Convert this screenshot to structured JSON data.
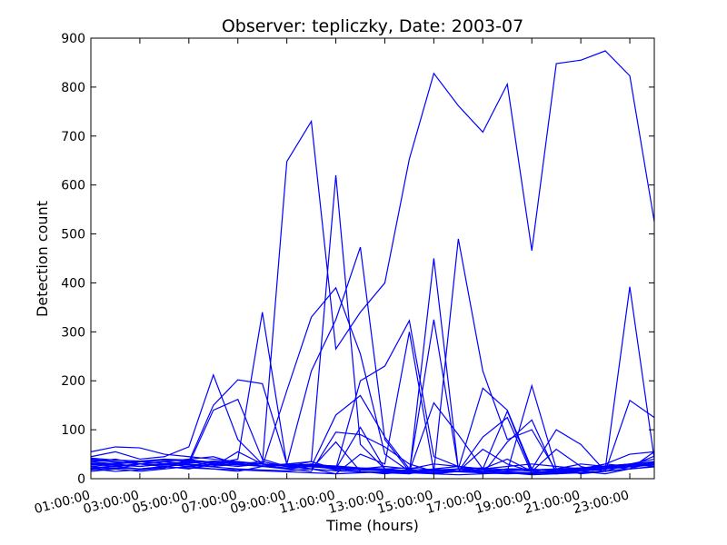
{
  "chart_data": {
    "type": "line",
    "title": "Observer: tepliczky, Date: 2003-07",
    "xlabel": "Time (hours)",
    "ylabel": "Detection count",
    "xlim": [
      1,
      24
    ],
    "ylim": [
      0,
      900
    ],
    "yticks": [
      0,
      100,
      200,
      300,
      400,
      500,
      600,
      700,
      800,
      900
    ],
    "xticks": [
      1,
      3,
      5,
      7,
      9,
      11,
      13,
      15,
      17,
      19,
      21,
      23
    ],
    "xtick_labels": [
      "01:00:00",
      "03:00:00",
      "05:00:00",
      "07:00:00",
      "09:00:00",
      "11:00:00",
      "13:00:00",
      "15:00:00",
      "17:00:00",
      "19:00:00",
      "21:00:00",
      "23:00:00"
    ],
    "x": [
      1,
      2,
      3,
      4,
      5,
      6,
      7,
      8,
      9,
      10,
      11,
      12,
      13,
      14,
      15,
      16,
      17,
      18,
      19,
      20,
      21,
      22,
      23,
      24
    ],
    "line_color": "#0000ff",
    "grid": false,
    "series": [
      {
        "values": [
          55,
          65,
          63,
          50,
          45,
          40,
          35,
          30,
          648,
          730,
          265,
          340,
          400,
          653,
          828,
          762,
          708,
          806,
          466,
          848,
          855,
          874,
          823,
          525
        ]
      },
      {
        "values": [
          45,
          55,
          40,
          45,
          65,
          212,
          80,
          30,
          25,
          30,
          20,
          15,
          12,
          10,
          20,
          25,
          15,
          20,
          15,
          10,
          15,
          20,
          392,
          40
        ]
      },
      {
        "values": [
          30,
          28,
          25,
          30,
          35,
          150,
          202,
          194,
          30,
          25,
          20,
          200,
          230,
          323,
          45,
          25,
          20,
          15,
          190,
          20,
          10,
          15,
          20,
          55
        ]
      },
      {
        "values": [
          25,
          20,
          30,
          25,
          30,
          140,
          162,
          40,
          25,
          35,
          620,
          70,
          20,
          10,
          450,
          20,
          15,
          20,
          20,
          15,
          15,
          20,
          30,
          35
        ]
      },
      {
        "values": [
          20,
          15,
          18,
          22,
          40,
          30,
          40,
          340,
          28,
          20,
          10,
          50,
          30,
          300,
          15,
          490,
          220,
          80,
          100,
          15,
          20,
          25,
          30,
          40
        ]
      },
      {
        "values": [
          35,
          30,
          25,
          30,
          25,
          35,
          30,
          25,
          30,
          220,
          325,
          473,
          80,
          15,
          325,
          20,
          185,
          140,
          20,
          100,
          70,
          15,
          160,
          125
        ]
      },
      {
        "values": [
          40,
          35,
          30,
          35,
          30,
          25,
          30,
          25,
          180,
          330,
          390,
          255,
          50,
          15,
          155,
          90,
          20,
          138,
          15,
          20,
          15,
          10,
          20,
          25
        ]
      },
      {
        "values": [
          20,
          25,
          30,
          25,
          20,
          30,
          25,
          30,
          20,
          25,
          130,
          170,
          85,
          20,
          10,
          15,
          85,
          125,
          10,
          15,
          20,
          30,
          25,
          30
        ]
      },
      {
        "values": [
          25,
          30,
          35,
          30,
          25,
          30,
          35,
          25,
          20,
          15,
          95,
          90,
          65,
          30,
          15,
          20,
          10,
          75,
          120,
          10,
          15,
          20,
          25,
          30
        ]
      },
      {
        "values": [
          30,
          25,
          20,
          25,
          30,
          25,
          55,
          30,
          25,
          20,
          75,
          15,
          10,
          15,
          20,
          15,
          60,
          30,
          15,
          60,
          25,
          15,
          30,
          25
        ]
      },
      {
        "values": [
          15,
          20,
          15,
          20,
          25,
          20,
          15,
          25,
          30,
          35,
          20,
          105,
          20,
          15,
          10,
          15,
          20,
          40,
          15,
          20,
          30,
          25,
          20,
          35
        ]
      },
      {
        "values": [
          35,
          40,
          30,
          35,
          40,
          45,
          30,
          35,
          25,
          30,
          25,
          20,
          25,
          20,
          30,
          25,
          20,
          25,
          30,
          25,
          20,
          30,
          50,
          55
        ]
      },
      {
        "values": [
          28,
          32,
          36,
          30,
          34,
          28,
          30,
          26,
          22,
          28,
          18,
          20,
          16,
          18,
          14,
          20,
          18,
          14,
          12,
          16,
          20,
          24,
          28,
          32
        ]
      },
      {
        "values": [
          22,
          26,
          30,
          34,
          28,
          24,
          20,
          18,
          16,
          20,
          16,
          14,
          12,
          14,
          12,
          16,
          14,
          12,
          10,
          12,
          16,
          20,
          24,
          28
        ]
      },
      {
        "values": [
          38,
          34,
          30,
          28,
          32,
          36,
          34,
          30,
          28,
          26,
          24,
          20,
          18,
          16,
          18,
          16,
          14,
          16,
          18,
          20,
          22,
          26,
          30,
          34
        ]
      },
      {
        "values": [
          18,
          22,
          20,
          24,
          22,
          20,
          18,
          16,
          14,
          12,
          10,
          12,
          14,
          12,
          10,
          8,
          10,
          12,
          8,
          10,
          12,
          16,
          20,
          24
        ]
      },
      {
        "values": [
          32,
          30,
          34,
          38,
          36,
          32,
          28,
          26,
          30,
          28,
          26,
          22,
          20,
          22,
          18,
          20,
          22,
          18,
          16,
          18,
          22,
          26,
          28,
          30
        ]
      },
      {
        "values": [
          42,
          38,
          36,
          40,
          38,
          34,
          32,
          30,
          28,
          24,
          22,
          18,
          16,
          14,
          16,
          14,
          12,
          10,
          12,
          14,
          18,
          22,
          26,
          46
        ]
      }
    ]
  }
}
